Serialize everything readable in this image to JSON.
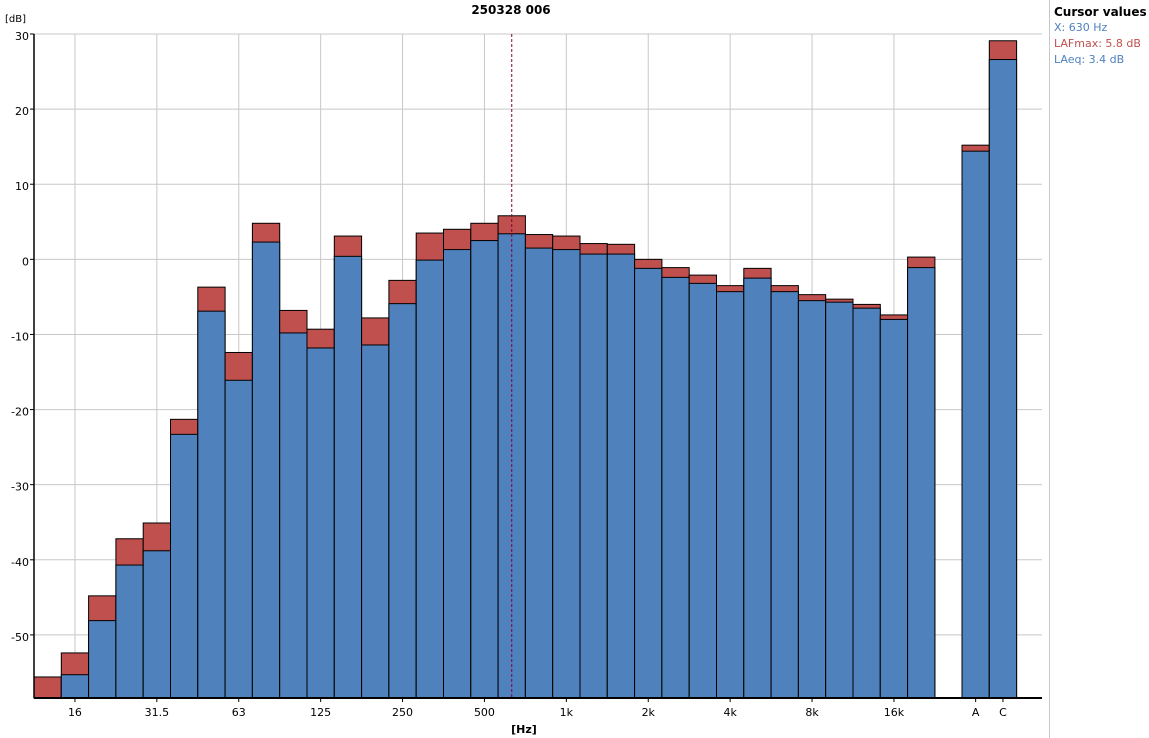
{
  "chart_data": {
    "type": "bar",
    "title": "250328 006",
    "xlabel": "[Hz]",
    "ylabel": "[dB]",
    "ylim": [
      -58.4,
      30
    ],
    "yticks": [
      30,
      20,
      10,
      0,
      -10,
      -20,
      -30,
      -40,
      -50
    ],
    "grid": true,
    "x_tick_labels": [
      "16",
      "31.5",
      "63",
      "125",
      "250",
      "500",
      "1k",
      "2k",
      "4k",
      "8k",
      "16k",
      "A",
      "C"
    ],
    "categories": [
      "12.5",
      "16",
      "20",
      "25",
      "31.5",
      "40",
      "50",
      "63",
      "80",
      "100",
      "125",
      "160",
      "200",
      "250",
      "315",
      "400",
      "500",
      "630",
      "800",
      "1k",
      "1.25k",
      "1.6k",
      "2k",
      "2.5k",
      "3.15k",
      "4k",
      "5k",
      "6.3k",
      "8k",
      "10k",
      "12.5k",
      "16k",
      "20k",
      "A",
      "C"
    ],
    "series": [
      {
        "name": "LAFmax",
        "color": "#c0504d",
        "values": [
          -55.6,
          -52.4,
          -44.8,
          -37.2,
          -35.1,
          -21.3,
          -3.7,
          -12.4,
          4.8,
          -6.8,
          -9.3,
          3.1,
          -7.8,
          -2.8,
          3.5,
          4.0,
          4.8,
          5.8,
          3.3,
          3.1,
          2.1,
          2.0,
          0.0,
          -1.1,
          -2.1,
          -3.5,
          -1.2,
          -3.5,
          -4.7,
          -5.3,
          -6.0,
          -7.4,
          0.3,
          15.2,
          29.1
        ]
      },
      {
        "name": "LAeq",
        "color": "#4f81bd",
        "values": [
          -59,
          -55.3,
          -48.1,
          -40.7,
          -38.8,
          -23.3,
          -6.9,
          -16.1,
          2.3,
          -9.8,
          -11.8,
          0.4,
          -11.4,
          -5.9,
          -0.1,
          1.3,
          2.5,
          3.4,
          1.5,
          1.3,
          0.7,
          0.7,
          -1.2,
          -2.4,
          -3.2,
          -4.3,
          -2.5,
          -4.3,
          -5.5,
          -5.7,
          -6.5,
          -8.0,
          -1.1,
          14.4,
          26.6
        ]
      }
    ],
    "cursor": {
      "x_category": "630"
    }
  },
  "legend": {
    "title": "Cursor values",
    "x": "X: 630 Hz",
    "lafmax": "LAFmax: 5.8 dB",
    "laeq": "LAeq: 3.4 dB",
    "lafmax_color": "#c0504d",
    "laeq_color": "#4f81bd"
  }
}
